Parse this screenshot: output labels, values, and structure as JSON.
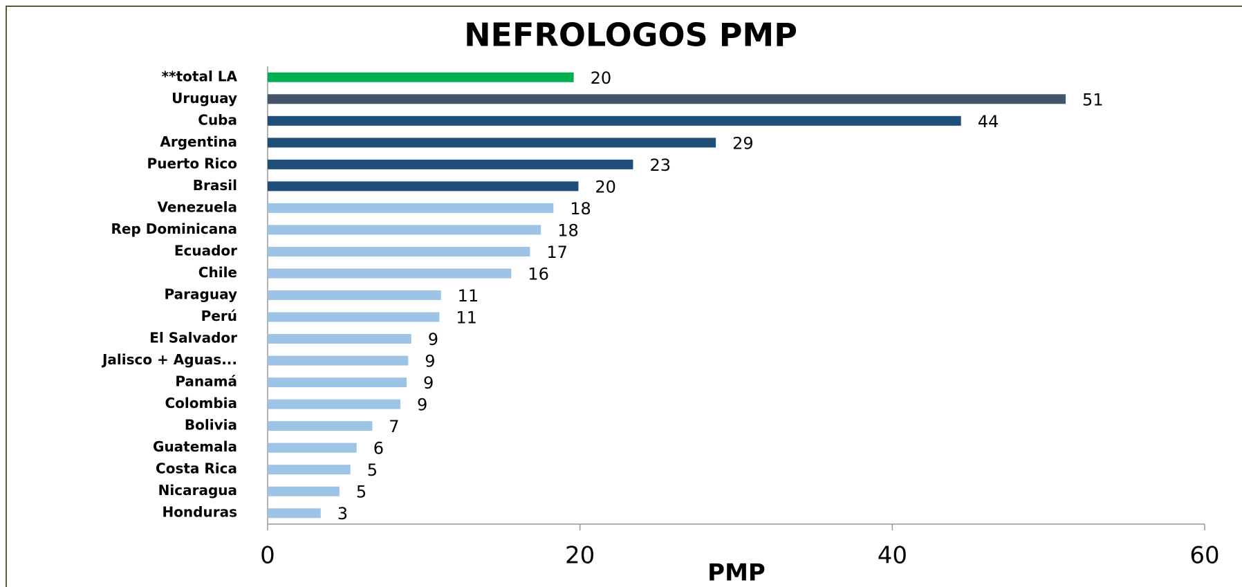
{
  "chart_data": {
    "type": "bar",
    "orientation": "horizontal",
    "title": "NEFROLOGOS PMP",
    "x_label": "PMP",
    "categories": [
      "**total LA",
      "Uruguay",
      "Cuba",
      "Argentina",
      "Puerto Rico",
      "Brasil",
      "Venezuela",
      "Rep Dominicana",
      "Ecuador",
      "Chile",
      "Paraguay",
      "Perú",
      "El Salvador",
      "Jalisco + Aguas...",
      "Panamá",
      "Colombia",
      "Bolivia",
      "Guatemala",
      "Costa Rica",
      "Nicaragua",
      "Honduras"
    ],
    "values": [
      19.6,
      51.1,
      44.4,
      28.7,
      23.4,
      19.9,
      18.3,
      17.5,
      16.8,
      15.6,
      11.1,
      11.0,
      9.2,
      9.0,
      8.9,
      8.5,
      6.7,
      5.7,
      5.3,
      4.6,
      3.4
    ],
    "value_labels": [
      "20",
      "51",
      "44",
      "29",
      "23",
      "20",
      "18",
      "18",
      "17",
      "16",
      "11",
      "11",
      "9",
      "9",
      "9",
      "9",
      "7",
      "6",
      "5",
      "5",
      "3"
    ],
    "colors": [
      "#00b050",
      "#44546a",
      "#1f4e79",
      "#1f4e79",
      "#1f4e79",
      "#1f4e79",
      "#9dc3e6",
      "#9dc3e6",
      "#9dc3e6",
      "#9dc3e6",
      "#9dc3e6",
      "#9dc3e6",
      "#9dc3e6",
      "#9dc3e6",
      "#9dc3e6",
      "#9dc3e6",
      "#9dc3e6",
      "#9dc3e6",
      "#9dc3e6",
      "#9dc3e6",
      "#9dc3e6"
    ],
    "xlim": [
      0,
      60
    ],
    "xticks": [
      0,
      20,
      40,
      60
    ],
    "grid": false
  }
}
